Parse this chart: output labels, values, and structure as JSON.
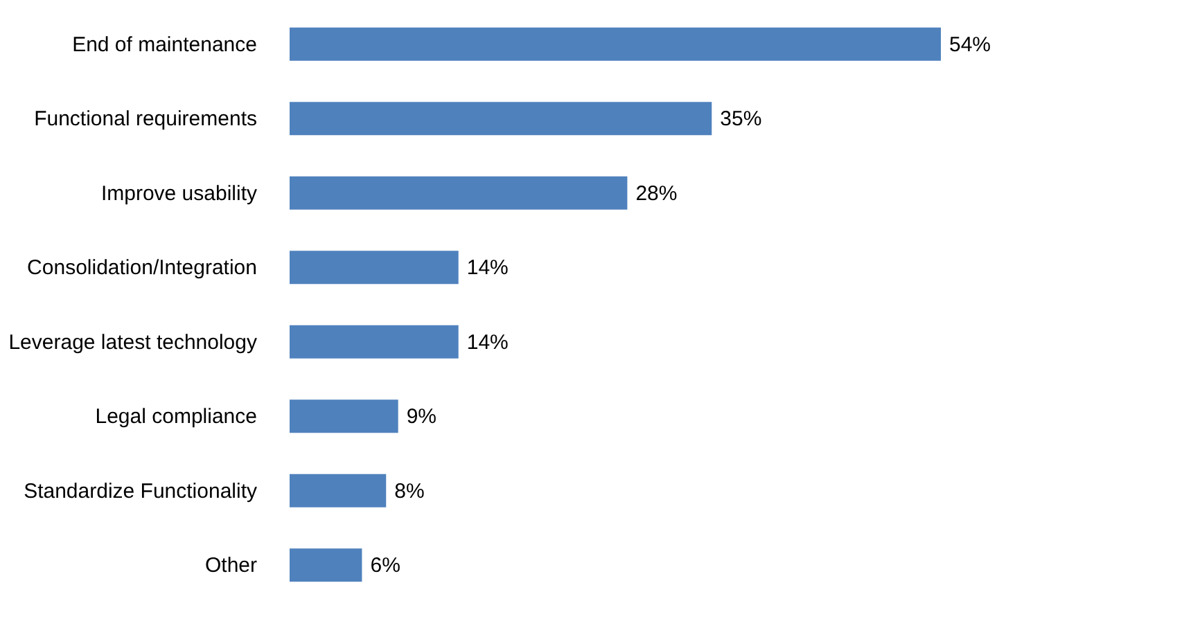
{
  "chart_data": {
    "type": "bar",
    "orientation": "horizontal",
    "categories": [
      "End of  maintenance",
      "Functional requirements",
      "Improve usability",
      "Consolidation/Integration",
      "Leverage latest technology",
      "Legal compliance",
      "Standardize Functionality",
      "Other"
    ],
    "values": [
      54,
      35,
      28,
      14,
      14,
      9,
      8,
      6
    ],
    "value_labels": [
      "54%",
      "35%",
      "28%",
      "14%",
      "14%",
      "9%",
      "8%",
      "6%"
    ],
    "color": "#4f81bd",
    "grid": false
  }
}
